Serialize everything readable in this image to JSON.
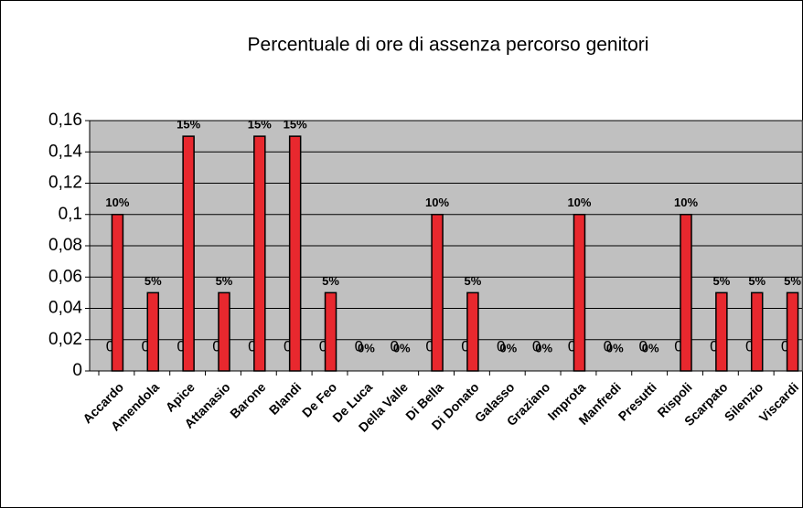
{
  "chart_data": {
    "type": "bar",
    "title": "Percentuale di ore di assenza percorso genitori",
    "categories": [
      "Accardo",
      "Amendola",
      "Apice",
      "Attanasio",
      "Barone",
      "Blandi",
      "De Feo",
      "De Luca",
      "Della Valle",
      "Di Bella",
      "Di Donato",
      "Galasso",
      "Graziano",
      "Improta",
      "Manfredi",
      "Presutti",
      "Rispoli",
      "Scarpato",
      "Silenzio",
      "Viscardi"
    ],
    "series": [
      {
        "values": [
          0,
          0,
          0,
          0,
          0,
          0,
          0,
          0,
          0,
          0,
          0,
          0,
          0,
          0,
          0,
          0,
          0,
          0,
          0,
          0
        ],
        "color": "#000080"
      },
      {
        "values": [
          0.1,
          0.05,
          0.15,
          0.05,
          0.15,
          0.15,
          0.05,
          0,
          0,
          0.1,
          0.05,
          0,
          0,
          0.1,
          0,
          0,
          0.1,
          0.05,
          0.05,
          0.05
        ],
        "value_labels": [
          "10%",
          "5%",
          "15%",
          "5%",
          "15%",
          "15%",
          "5%",
          "0%",
          "0%",
          "10%",
          "5%",
          "0%",
          "0%",
          "10%",
          "0%",
          "0%",
          "10%",
          "5%",
          "5%",
          "5%"
        ],
        "color": "#e8282e"
      }
    ],
    "ylim": [
      0,
      0.16
    ],
    "yticks": [
      0,
      {
        "value": 0.02,
        "label": "0,02"
      },
      {
        "value": 0.04,
        "label": "0,04"
      },
      {
        "value": 0.06,
        "label": "0,06"
      },
      {
        "value": 0.08,
        "label": "0,08"
      },
      {
        "value": 0.1,
        "label": "0,1"
      },
      {
        "value": 0.12,
        "label": "0,12"
      },
      {
        "value": 0.14,
        "label": "0,14"
      },
      {
        "value": 0.16,
        "label": "0,16"
      }
    ],
    "grid": true
  }
}
